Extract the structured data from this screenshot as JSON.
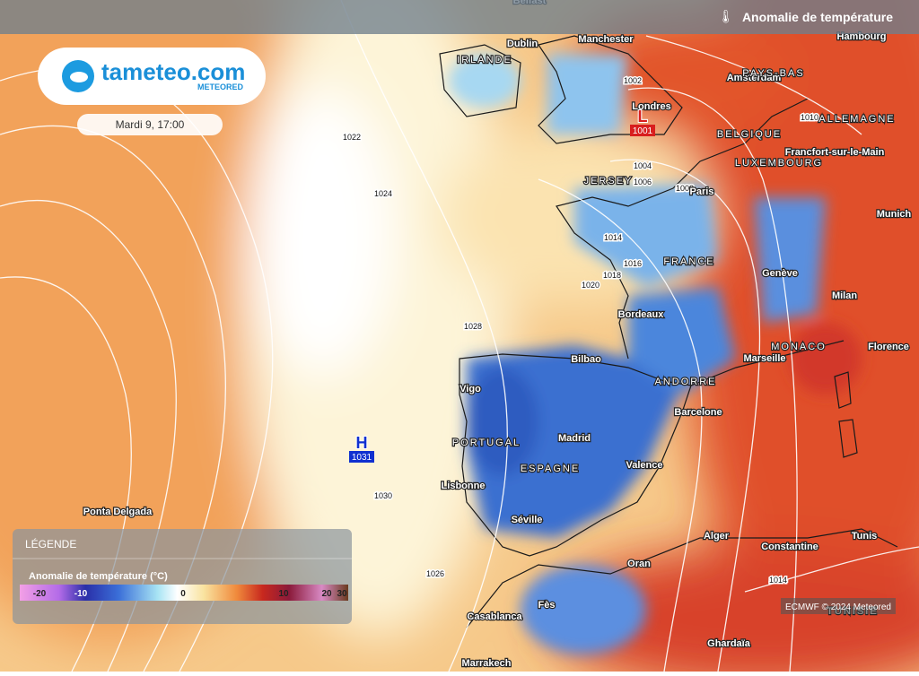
{
  "header": {
    "title": "Anomalie de température"
  },
  "logo": {
    "name": "tameteo.com",
    "brand": "METEORED"
  },
  "date": "Mardi 9, 17:00",
  "legend": {
    "heading": "LÉGENDE",
    "title": "Anomalie de température (°C)",
    "ticks": [
      -20,
      -10,
      0,
      10,
      20,
      30
    ]
  },
  "credit": "ECMWF © 2024 Meteored",
  "pressure_centers": [
    {
      "symbol": "H",
      "value": 1031
    },
    {
      "symbol": "L",
      "value": 1001
    }
  ],
  "places": [
    "Belfast",
    "Dublin",
    "IRLANDE",
    "Manchester",
    "Amsterdam",
    "PAYS-BAS",
    "Hambourg",
    "Londres",
    "ALLEMAGNE",
    "BELGIQUE",
    "Francfort-sur-le-Main",
    "LUXEMBOURG",
    "JERSEY",
    "Paris",
    "Munich",
    "FRANCE",
    "Genève",
    "Milan",
    "Bordeaux",
    "MONACO",
    "Marseille",
    "Florence",
    "Bilbao",
    "ANDORRE",
    "Vigo",
    "Barcelone",
    "PORTUGAL",
    "Madrid",
    "ESPAGNE",
    "Valence",
    "Lisbonne",
    "Séville",
    "Ponta Delgada",
    "Alger",
    "Constantine",
    "Tunis",
    "Oran",
    "Fès",
    "Casablanca",
    "TUNISIE",
    "Ghardaïa",
    "Marrakech"
  ],
  "isobars": [
    1022,
    1024,
    1020,
    1028,
    1030,
    1026,
    1002,
    1004,
    1006,
    1008,
    1014,
    1016,
    1018,
    1010,
    1014
  ]
}
